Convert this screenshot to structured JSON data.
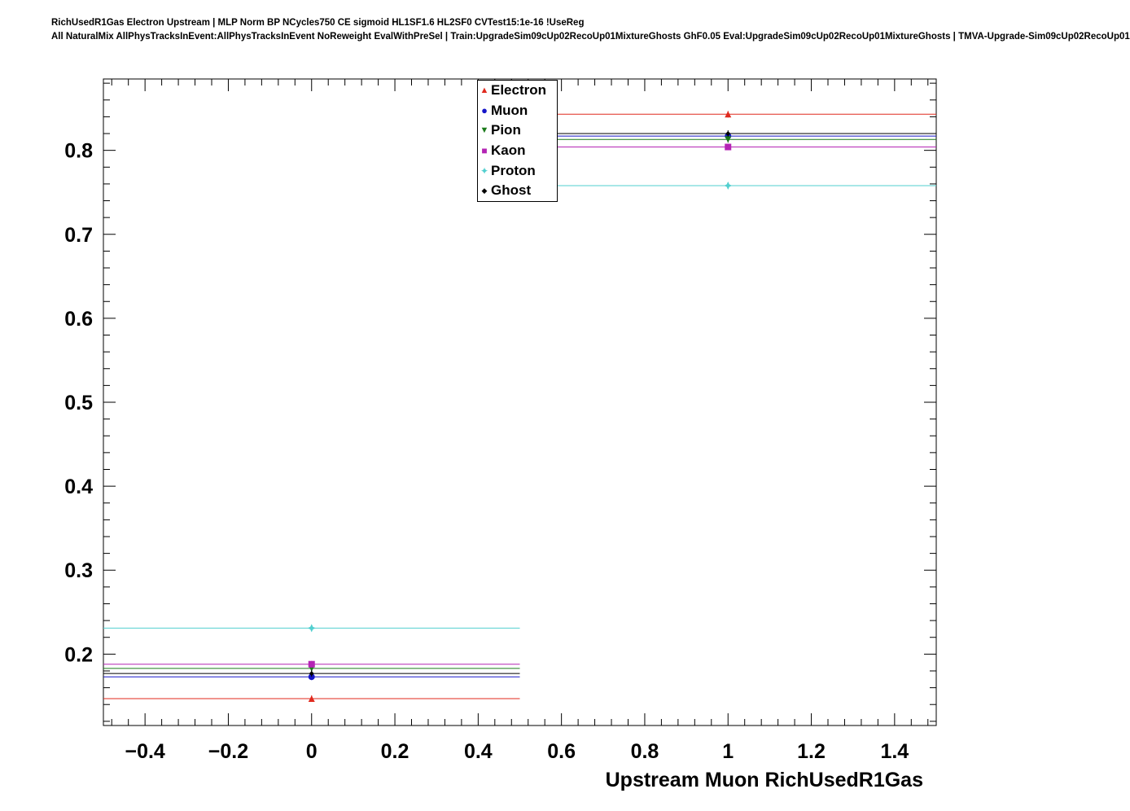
{
  "header": {
    "line1": "RichUsedR1Gas Electron Upstream | MLP Norm BP NCycles750 CE sigmoid HL1SF1.6 HL2SF0 CVTest15:1e-16 !UseReg",
    "line2": "All NaturalMix AllPhysTracksInEvent:AllPhysTracksInEvent NoReweight EvalWithPreSel | Train:UpgradeSim09cUp02RecoUp01MixtureGhosts GhF0.05 Eval:UpgradeSim09cUp02RecoUp01MixtureGhosts | TMVA-Upgrade-Sim09cUp02RecoUp01"
  },
  "chart_data": {
    "type": "line",
    "title": "RichUsedR1Gas Electron Upstream",
    "xlabel": "Upstream Muon RichUsedR1Gas",
    "ylabel": "",
    "xlim": [
      -0.5,
      1.5
    ],
    "ylim": [
      0.115,
      0.885
    ],
    "grid": false,
    "legend_position": "top-right",
    "x_ticks": [
      {
        "value": -0.4,
        "label": "−0.4"
      },
      {
        "value": -0.2,
        "label": "−0.2"
      },
      {
        "value": 0,
        "label": "0"
      },
      {
        "value": 0.2,
        "label": "0.2"
      },
      {
        "value": 0.4,
        "label": "0.4"
      },
      {
        "value": 0.6,
        "label": "0.6"
      },
      {
        "value": 0.8,
        "label": "0.8"
      },
      {
        "value": 1,
        "label": "1"
      },
      {
        "value": 1.2,
        "label": "1.2"
      },
      {
        "value": 1.4,
        "label": "1.4"
      }
    ],
    "y_ticks": [
      {
        "value": 0.2,
        "label": "0.2"
      },
      {
        "value": 0.3,
        "label": "0.3"
      },
      {
        "value": 0.4,
        "label": "0.4"
      },
      {
        "value": 0.5,
        "label": "0.5"
      },
      {
        "value": 0.6,
        "label": "0.6"
      },
      {
        "value": 0.7,
        "label": "0.7"
      },
      {
        "value": 0.8,
        "label": "0.8"
      }
    ],
    "bins": [
      {
        "low": -0.5,
        "high": 0.5,
        "center": 0
      },
      {
        "low": 0.5,
        "high": 1.5,
        "center": 1
      }
    ],
    "series": [
      {
        "name": "Electron",
        "color": "#e02a1e",
        "marker": "triangle-up",
        "values": [
          0.147,
          0.843
        ]
      },
      {
        "name": "Muon",
        "color": "#1515c8",
        "marker": "circle",
        "values": [
          0.173,
          0.817
        ]
      },
      {
        "name": "Pion",
        "color": "#1a7a1a",
        "marker": "triangle-down",
        "values": [
          0.183,
          0.813
        ]
      },
      {
        "name": "Kaon",
        "color": "#b424b4",
        "marker": "square",
        "values": [
          0.188,
          0.804
        ]
      },
      {
        "name": "Proton",
        "color": "#52cfcf",
        "marker": "star4",
        "values": [
          0.231,
          0.758
        ]
      },
      {
        "name": "Ghost",
        "color": "#000000",
        "marker": "diamond",
        "values": [
          0.177,
          0.82
        ]
      }
    ]
  }
}
